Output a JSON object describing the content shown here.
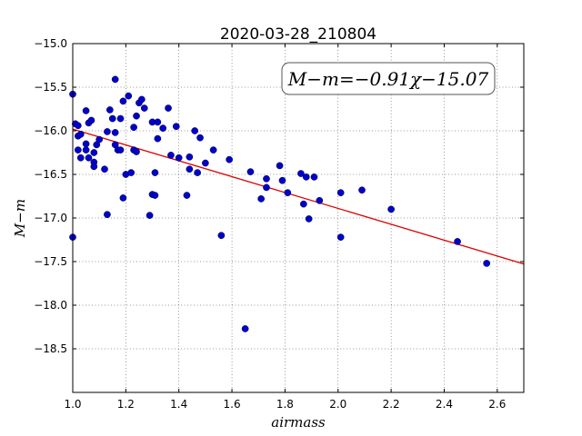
{
  "chart_data": {
    "type": "scatter",
    "title": "2020-03-28_210804",
    "xlabel": "airmass",
    "ylabel": "M−m",
    "xlim": [
      1.0,
      2.7
    ],
    "ylim": [
      -15.0,
      -19.0
    ],
    "y_inverted": true,
    "grid": true,
    "xticks": [
      1.0,
      1.2,
      1.4,
      1.6,
      1.8,
      2.0,
      2.2,
      2.4,
      2.6
    ],
    "xtick_labels": [
      "1.0",
      "1.2",
      "1.4",
      "1.6",
      "1.8",
      "2.0",
      "2.2",
      "2.4",
      "2.6"
    ],
    "yticks": [
      -15.0,
      -15.5,
      -16.0,
      -16.5,
      -17.0,
      -17.5,
      -18.0,
      -18.5
    ],
    "ytick_labels": [
      "−15.0",
      "−15.5",
      "−16.0",
      "−16.5",
      "−17.0",
      "−17.5",
      "−18.0",
      "−18.5"
    ],
    "annotation": "M−m=−0.91χ−15.07",
    "fit": {
      "slope": -0.91,
      "intercept": -15.07,
      "color": "#dd0000"
    },
    "marker_color": "#0000cc",
    "points": [
      [
        1.0,
        -15.58
      ],
      [
        1.0,
        -17.22
      ],
      [
        1.01,
        -15.92
      ],
      [
        1.02,
        -16.06
      ],
      [
        1.02,
        -15.94
      ],
      [
        1.02,
        -16.22
      ],
      [
        1.03,
        -16.04
      ],
      [
        1.03,
        -16.31
      ],
      [
        1.05,
        -15.77
      ],
      [
        1.05,
        -16.15
      ],
      [
        1.05,
        -16.22
      ],
      [
        1.06,
        -16.31
      ],
      [
        1.06,
        -15.91
      ],
      [
        1.07,
        -15.88
      ],
      [
        1.08,
        -16.25
      ],
      [
        1.08,
        -16.36
      ],
      [
        1.08,
        -16.41
      ],
      [
        1.09,
        -16.16
      ],
      [
        1.1,
        -16.1
      ],
      [
        1.12,
        -16.44
      ],
      [
        1.13,
        -16.96
      ],
      [
        1.13,
        -16.01
      ],
      [
        1.14,
        -15.76
      ],
      [
        1.15,
        -15.86
      ],
      [
        1.16,
        -15.41
      ],
      [
        1.16,
        -16.16
      ],
      [
        1.16,
        -16.02
      ],
      [
        1.17,
        -16.22
      ],
      [
        1.18,
        -15.86
      ],
      [
        1.18,
        -16.22
      ],
      [
        1.19,
        -15.66
      ],
      [
        1.19,
        -16.77
      ],
      [
        1.2,
        -16.5
      ],
      [
        1.21,
        -15.6
      ],
      [
        1.22,
        -16.48
      ],
      [
        1.23,
        -15.96
      ],
      [
        1.23,
        -16.22
      ],
      [
        1.24,
        -15.83
      ],
      [
        1.24,
        -16.24
      ],
      [
        1.25,
        -15.68
      ],
      [
        1.26,
        -15.64
      ],
      [
        1.27,
        -15.74
      ],
      [
        1.29,
        -16.97
      ],
      [
        1.3,
        -16.73
      ],
      [
        1.3,
        -15.9
      ],
      [
        1.31,
        -16.48
      ],
      [
        1.31,
        -16.74
      ],
      [
        1.32,
        -16.09
      ],
      [
        1.32,
        -15.9
      ],
      [
        1.34,
        -15.97
      ],
      [
        1.36,
        -15.74
      ],
      [
        1.37,
        -16.28
      ],
      [
        1.39,
        -15.95
      ],
      [
        1.4,
        -16.31
      ],
      [
        1.43,
        -16.74
      ],
      [
        1.44,
        -16.44
      ],
      [
        1.44,
        -16.3
      ],
      [
        1.46,
        -16.0
      ],
      [
        1.47,
        -16.48
      ],
      [
        1.48,
        -16.08
      ],
      [
        1.5,
        -16.37
      ],
      [
        1.53,
        -16.22
      ],
      [
        1.56,
        -17.2
      ],
      [
        1.59,
        -16.33
      ],
      [
        1.65,
        -18.27
      ],
      [
        1.67,
        -16.47
      ],
      [
        1.71,
        -16.78
      ],
      [
        1.73,
        -16.55
      ],
      [
        1.73,
        -16.65
      ],
      [
        1.78,
        -16.4
      ],
      [
        1.79,
        -16.57
      ],
      [
        1.81,
        -16.71
      ],
      [
        1.86,
        -16.49
      ],
      [
        1.87,
        -16.84
      ],
      [
        1.88,
        -16.53
      ],
      [
        1.89,
        -17.01
      ],
      [
        1.91,
        -16.53
      ],
      [
        1.93,
        -16.8
      ],
      [
        2.01,
        -16.71
      ],
      [
        2.01,
        -17.22
      ],
      [
        2.09,
        -16.68
      ],
      [
        2.2,
        -16.9
      ],
      [
        2.45,
        -17.27
      ],
      [
        2.56,
        -17.52
      ]
    ]
  }
}
